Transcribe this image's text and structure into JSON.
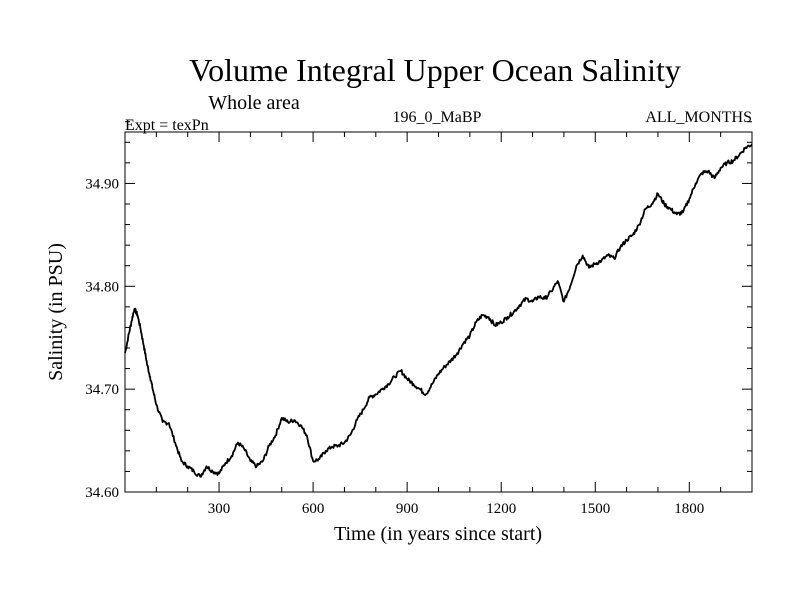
{
  "chart_data": {
    "type": "line",
    "title": "Volume Integral Upper Ocean Salinity",
    "subtitle": "Whole area",
    "left_label": "Expt = texPn",
    "center_label": "196_0_MaBP",
    "right_label": "ALL_MONTHS",
    "xlabel": "Time (in years since start)",
    "ylabel": "Salinity (in PSU)",
    "xlim": [
      0,
      2000
    ],
    "ylim": [
      34.6,
      34.95
    ],
    "xticks": [
      300,
      600,
      900,
      1200,
      1500,
      1800
    ],
    "xtick_labels": [
      "300",
      "600",
      "900",
      "1200",
      "1500",
      "1800"
    ],
    "yticks": [
      34.6,
      34.7,
      34.8,
      34.9
    ],
    "ytick_labels": [
      "34.60",
      "34.70",
      "34.80",
      "34.90"
    ],
    "series": [
      {
        "name": "Salinity",
        "x": [
          0,
          10,
          20,
          30,
          40,
          50,
          60,
          70,
          80,
          90,
          100,
          120,
          140,
          160,
          180,
          200,
          220,
          240,
          260,
          280,
          300,
          320,
          340,
          360,
          380,
          400,
          420,
          440,
          460,
          480,
          500,
          520,
          540,
          560,
          580,
          600,
          620,
          640,
          660,
          680,
          700,
          720,
          740,
          760,
          780,
          800,
          820,
          840,
          860,
          880,
          900,
          920,
          940,
          960,
          980,
          1000,
          1020,
          1040,
          1060,
          1080,
          1100,
          1120,
          1140,
          1160,
          1180,
          1200,
          1220,
          1240,
          1260,
          1280,
          1300,
          1320,
          1340,
          1360,
          1380,
          1400,
          1420,
          1440,
          1460,
          1480,
          1500,
          1520,
          1540,
          1560,
          1580,
          1600,
          1620,
          1640,
          1660,
          1680,
          1700,
          1720,
          1740,
          1760,
          1780,
          1800,
          1820,
          1840,
          1860,
          1880,
          1900,
          1920,
          1940,
          1960,
          1980,
          2000
        ],
        "values": [
          34.735,
          34.75,
          34.765,
          34.778,
          34.772,
          34.758,
          34.742,
          34.725,
          34.712,
          34.698,
          34.685,
          34.668,
          34.667,
          34.648,
          34.63,
          34.625,
          34.62,
          34.615,
          34.625,
          34.62,
          34.618,
          34.628,
          34.635,
          34.648,
          34.642,
          34.63,
          34.625,
          34.63,
          34.645,
          34.655,
          34.672,
          34.668,
          34.67,
          34.665,
          34.655,
          34.63,
          34.632,
          34.64,
          34.644,
          34.645,
          34.648,
          34.656,
          34.67,
          34.68,
          34.692,
          34.695,
          34.7,
          34.705,
          34.712,
          34.718,
          34.71,
          34.705,
          34.7,
          34.695,
          34.705,
          34.715,
          34.722,
          34.728,
          34.735,
          34.745,
          34.752,
          34.765,
          34.772,
          34.77,
          34.762,
          34.765,
          34.77,
          34.775,
          34.782,
          34.788,
          34.785,
          34.79,
          34.788,
          34.795,
          34.805,
          34.785,
          34.8,
          34.82,
          34.83,
          34.818,
          34.822,
          34.825,
          34.83,
          34.827,
          34.838,
          34.845,
          34.85,
          34.86,
          34.875,
          34.88,
          34.89,
          34.88,
          34.875,
          34.87,
          34.872,
          34.885,
          34.9,
          34.91,
          34.912,
          34.905,
          34.915,
          34.92,
          34.922,
          34.928,
          34.935,
          34.938
        ]
      }
    ]
  }
}
